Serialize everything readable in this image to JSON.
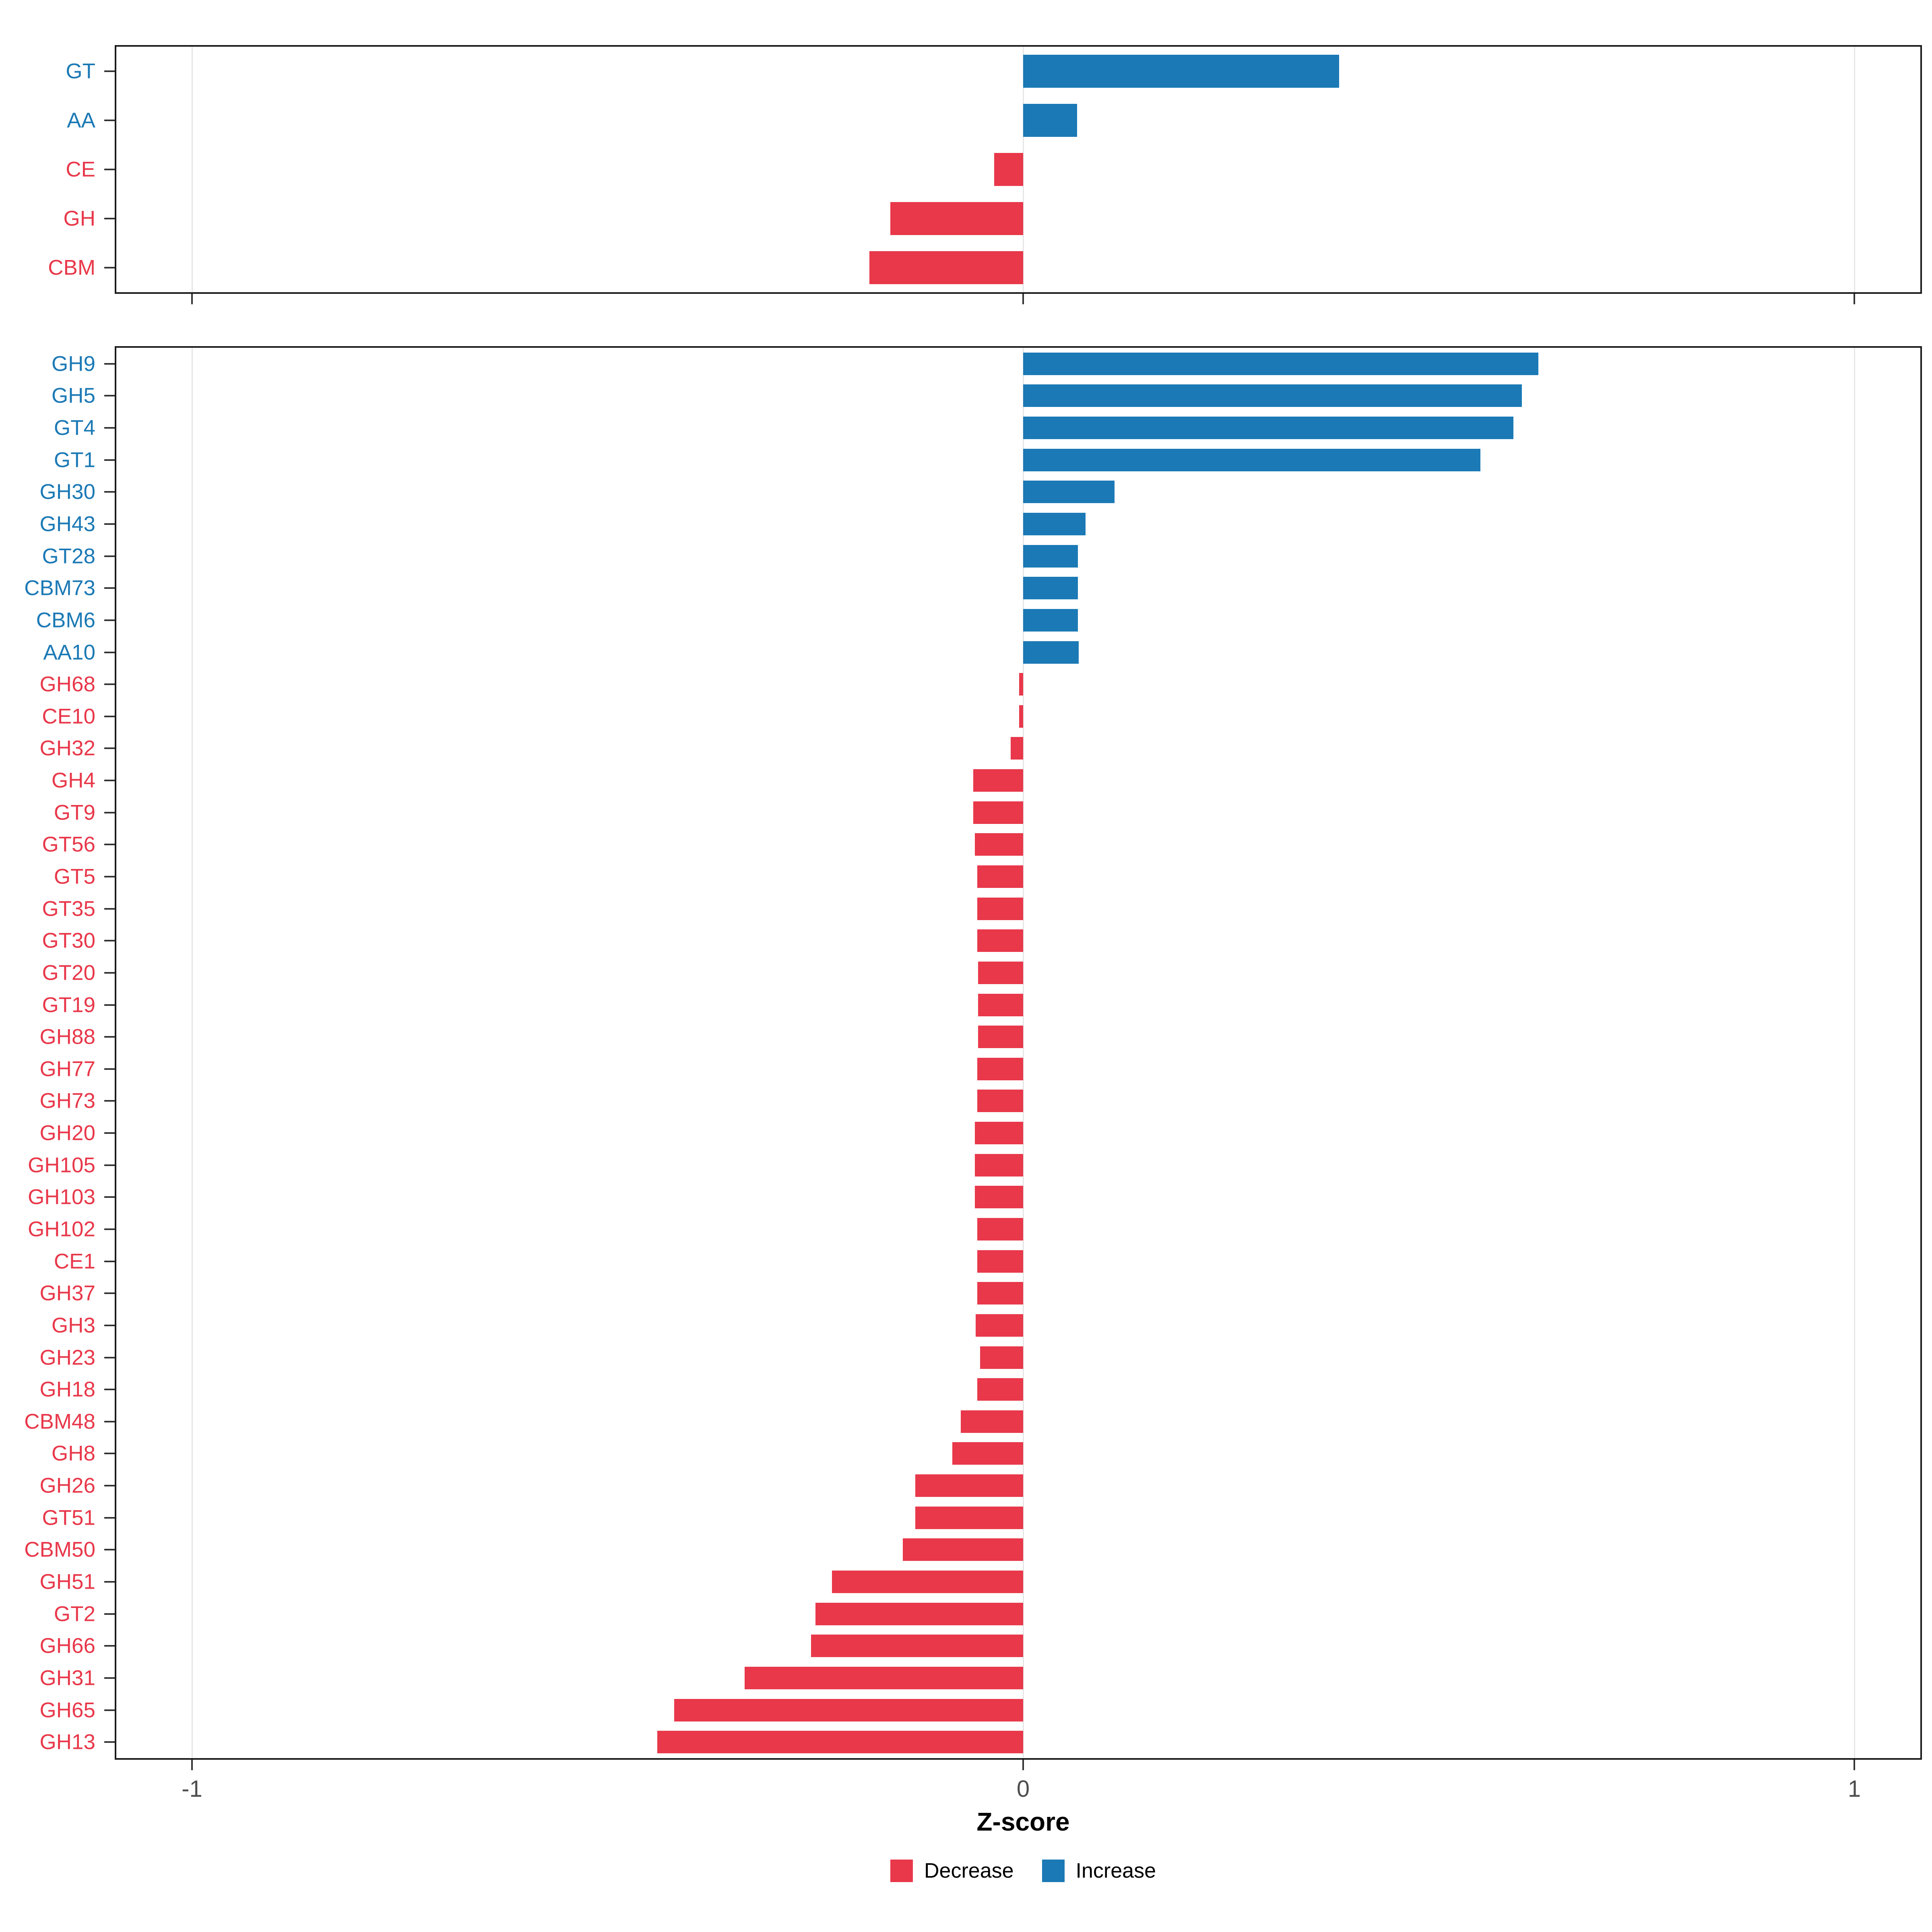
{
  "figure": {
    "x_axis": {
      "title": "Z-score",
      "tick_labels": [
        "-1",
        "0",
        "1"
      ],
      "tick_values": [
        -1,
        0,
        1
      ]
    },
    "legend": {
      "items": [
        {
          "label": "Decrease",
          "color": "#E8384A"
        },
        {
          "label": "Increase",
          "color": "#1B79B5"
        }
      ]
    }
  },
  "colors": {
    "decrease": "#E8384A",
    "increase": "#1B79B5",
    "gridline": "#E6E6E6",
    "panel_border": "#1A1A1A",
    "axis_tick": "#333333",
    "axis_tick_label": "#4D4D4D"
  },
  "chart_data": [
    {
      "type": "bar",
      "orientation": "horizontal",
      "panel": "cazyme-classes",
      "title": "",
      "xlabel": "Z-score",
      "ylabel": "",
      "xlim": [
        -1.09,
        1.09
      ],
      "grid_x": [
        -1,
        0,
        1
      ],
      "legend_position": "bottom",
      "color_rule": "positive=Increase(blue), negative=Decrease(red)",
      "categories": [
        "GT",
        "AA",
        "CE",
        "GH",
        "CBM"
      ],
      "values": [
        0.38,
        0.065,
        -0.035,
        -0.16,
        -0.185
      ]
    },
    {
      "type": "bar",
      "orientation": "horizontal",
      "panel": "cazyme-families",
      "title": "",
      "xlabel": "Z-score",
      "ylabel": "",
      "xlim": [
        -1.09,
        1.09
      ],
      "grid_x": [
        -1,
        0,
        1
      ],
      "legend_position": "bottom",
      "color_rule": "positive=Increase(blue), negative=Decrease(red)",
      "categories": [
        "GH9",
        "GH5",
        "GT4",
        "GT1",
        "GH30",
        "GH43",
        "GT28",
        "CBM73",
        "CBM6",
        "AA10",
        "GH68",
        "CE10",
        "GH32",
        "GH4",
        "GT9",
        "GT56",
        "GT5",
        "GT35",
        "GT30",
        "GT20",
        "GT19",
        "GH88",
        "GH77",
        "GH73",
        "GH20",
        "GH105",
        "GH103",
        "GH102",
        "CE1",
        "GH37",
        "GH3",
        "GH23",
        "GH18",
        "CBM48",
        "GH8",
        "GH26",
        "GT51",
        "CBM50",
        "GH51",
        "GT2",
        "GH66",
        "GH31",
        "GH65",
        "GH13"
      ],
      "values": [
        0.62,
        0.6,
        0.59,
        0.55,
        0.11,
        0.075,
        0.066,
        0.066,
        0.066,
        0.067,
        -0.005,
        -0.005,
        -0.015,
        -0.06,
        -0.06,
        -0.058,
        -0.055,
        -0.055,
        -0.055,
        -0.054,
        -0.054,
        -0.054,
        -0.055,
        -0.055,
        -0.058,
        -0.058,
        -0.058,
        -0.055,
        -0.055,
        -0.055,
        -0.057,
        -0.052,
        -0.055,
        -0.075,
        -0.085,
        -0.13,
        -0.13,
        -0.145,
        -0.23,
        -0.25,
        -0.255,
        -0.335,
        -0.42,
        -0.44
      ]
    }
  ]
}
